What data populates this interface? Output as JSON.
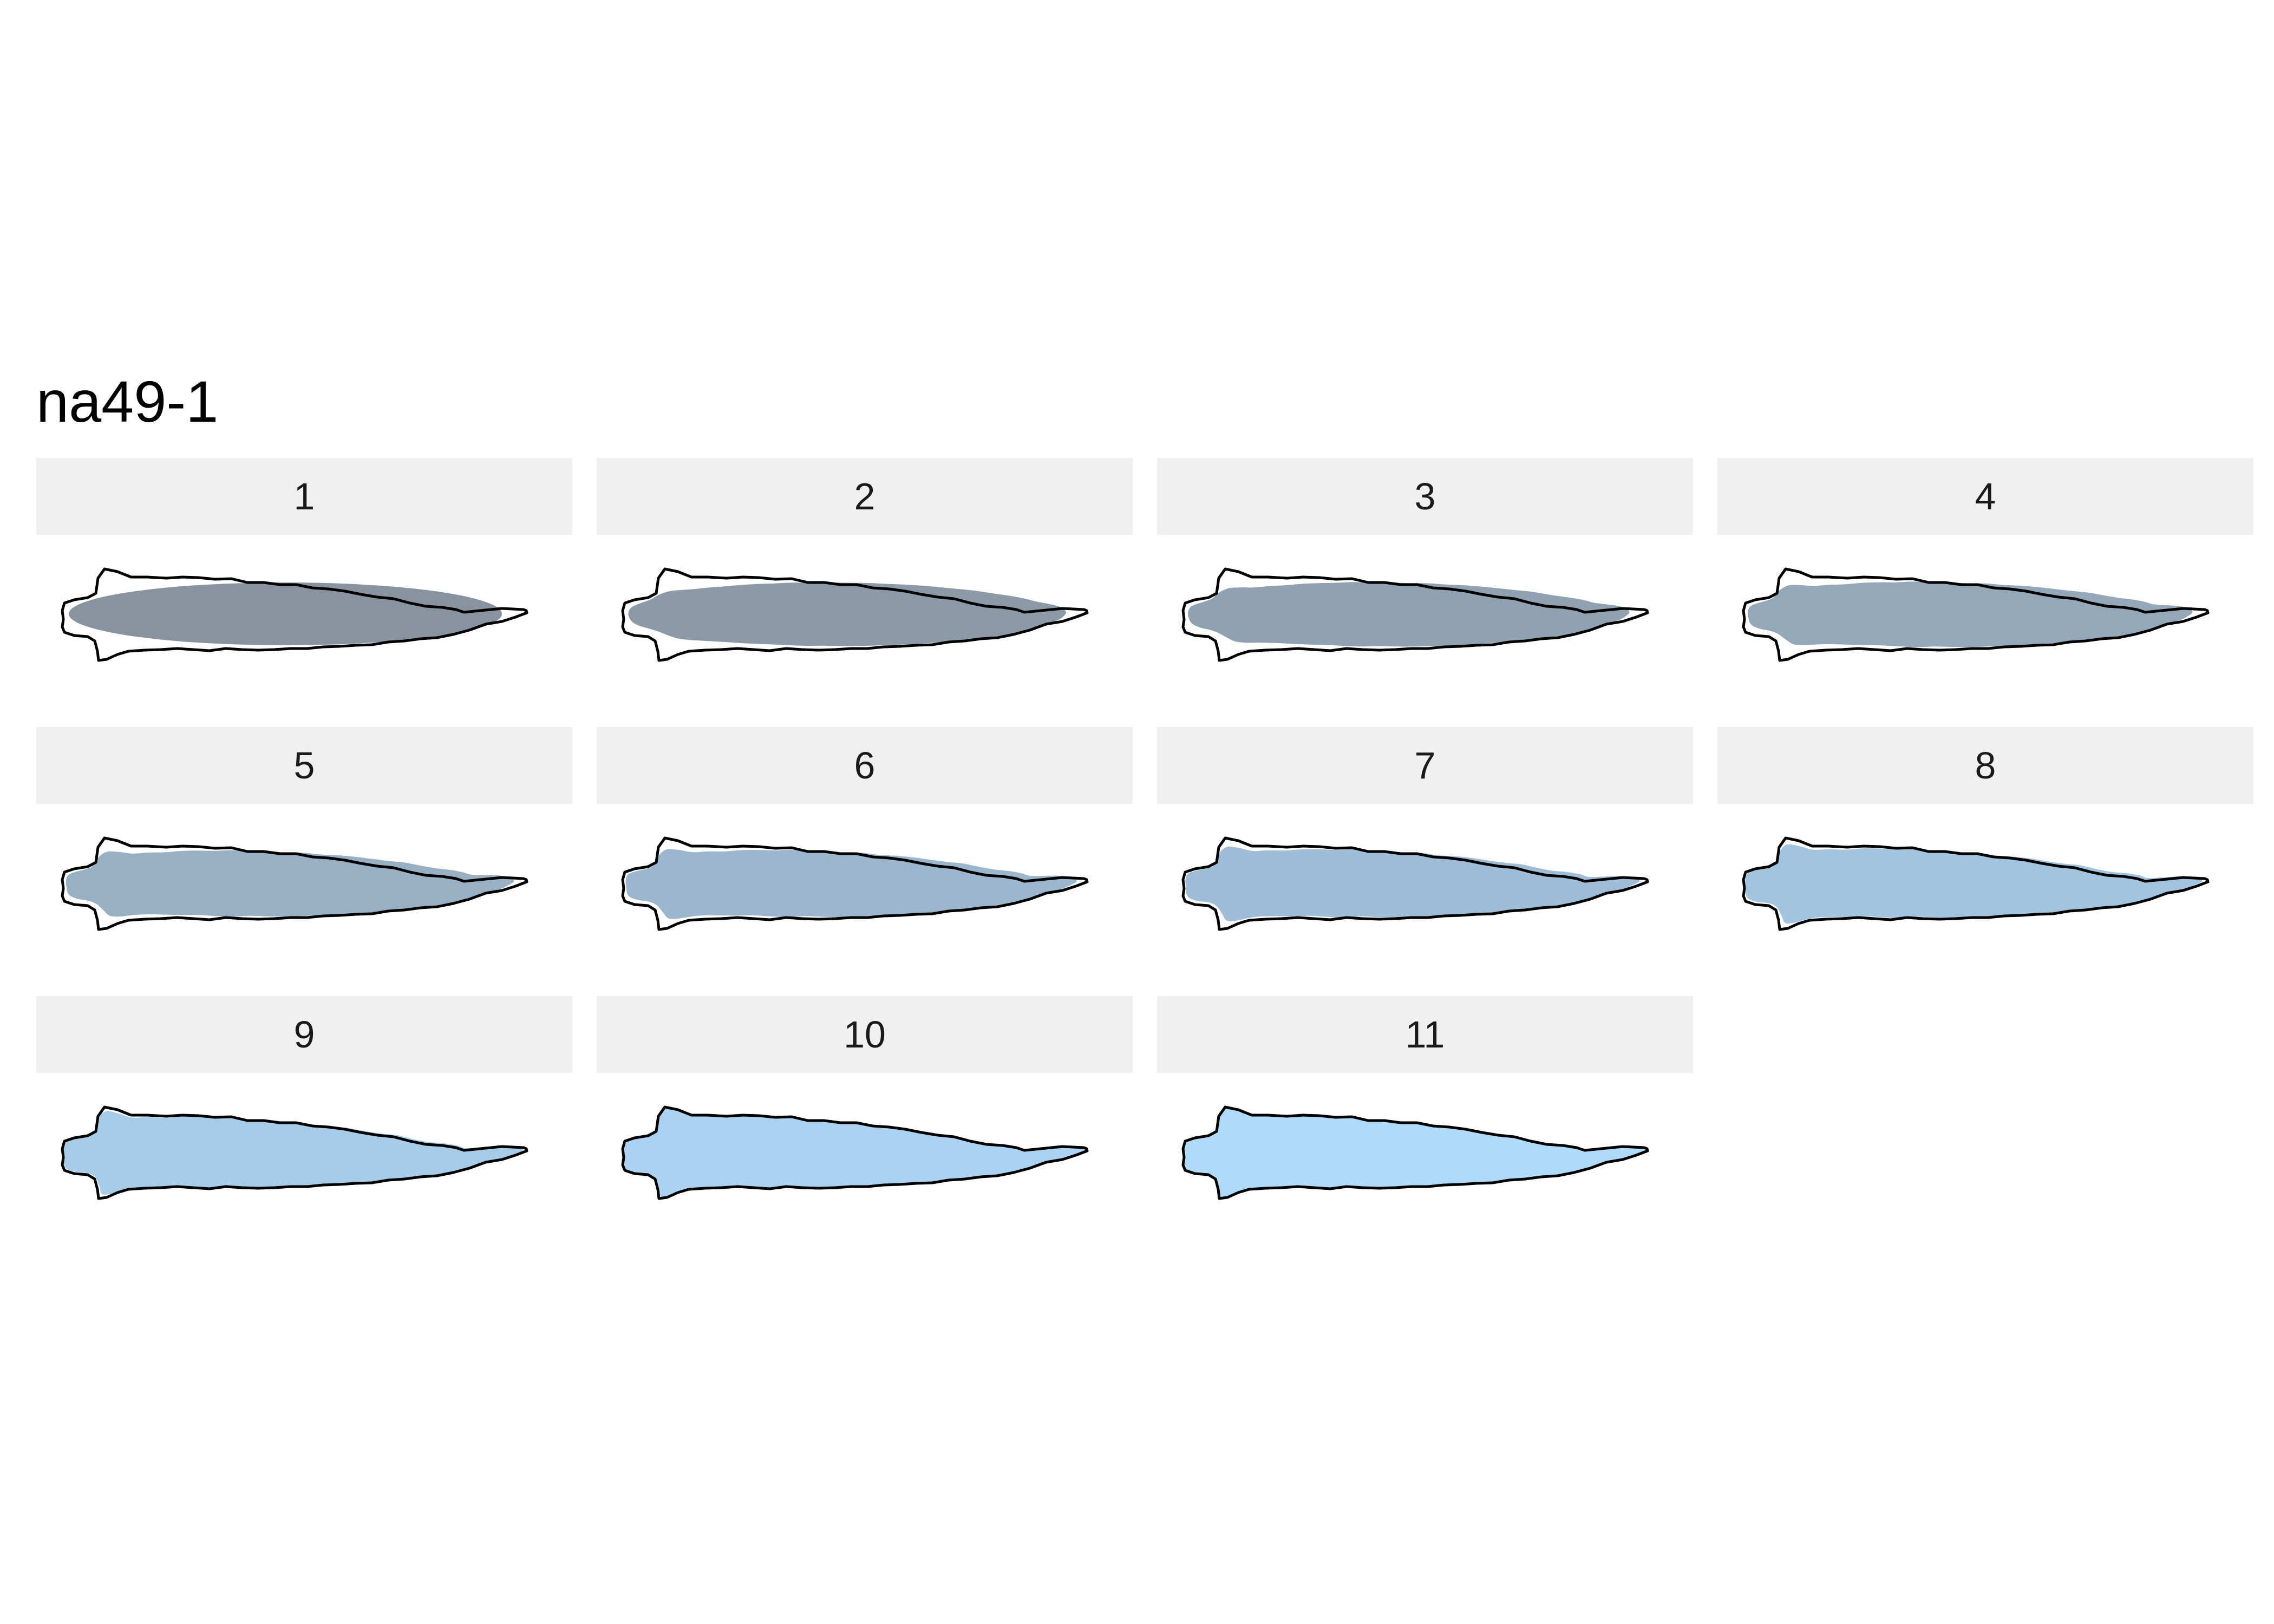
{
  "title": "na49-1",
  "colors": {
    "outline": "#000000",
    "fill_start": "#7b8795",
    "fill_end": "#a6d6fa",
    "strip_background": "#f0f0f0"
  },
  "panels": [
    {
      "label": "1"
    },
    {
      "label": "2"
    },
    {
      "label": "3"
    },
    {
      "label": "4"
    },
    {
      "label": "5"
    },
    {
      "label": "6"
    },
    {
      "label": "7"
    },
    {
      "label": "8"
    },
    {
      "label": "9"
    },
    {
      "label": "10"
    },
    {
      "label": "11"
    }
  ]
}
